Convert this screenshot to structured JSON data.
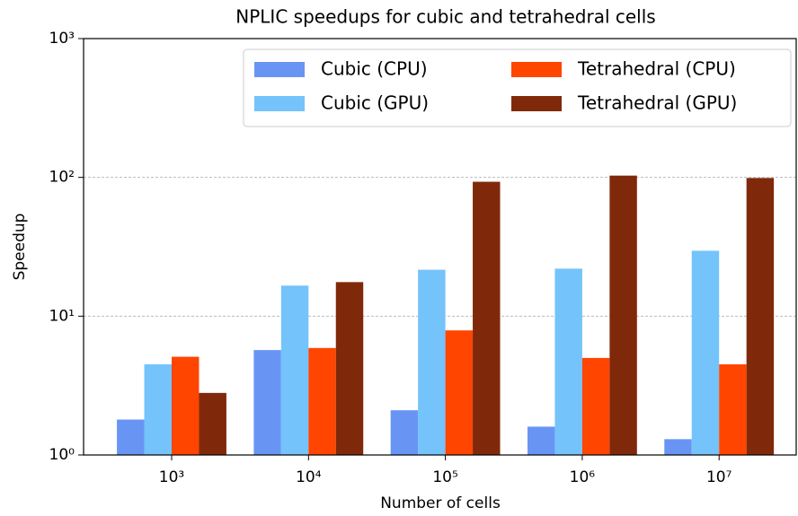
{
  "chart_data": {
    "type": "bar",
    "title": "NPLIC speedups for cubic and tetrahedral cells",
    "x_label": "Number of cells",
    "y_label": "Speedup",
    "categories": [
      "10³",
      "10⁴",
      "10⁵",
      "10⁶",
      "10⁷"
    ],
    "series": [
      {
        "name": "Cubic (CPU)",
        "color": "#6895f4",
        "values": [
          1.8,
          5.7,
          2.1,
          1.6,
          1.3
        ]
      },
      {
        "name": "Cubic (GPU)",
        "color": "#74c3fb",
        "values": [
          4.5,
          16.6,
          21.6,
          22,
          29.6
        ]
      },
      {
        "name": "Tetrahedral (CPU)",
        "color": "#ff4500",
        "values": [
          5.1,
          5.9,
          7.9,
          5.0,
          4.5
        ]
      },
      {
        "name": "Tetrahedral (GPU)",
        "color": "#80290a",
        "values": [
          2.8,
          17.6,
          93,
          103,
          99
        ]
      }
    ],
    "log_y": true,
    "ylim": [
      1,
      1000
    ],
    "yticks": [
      {
        "value": 1,
        "label": "10⁰"
      },
      {
        "value": 10,
        "label": "10¹"
      },
      {
        "value": 100,
        "label": "10²"
      },
      {
        "value": 1000,
        "label": "10³"
      }
    ],
    "grid": true,
    "legend": "upper right"
  }
}
